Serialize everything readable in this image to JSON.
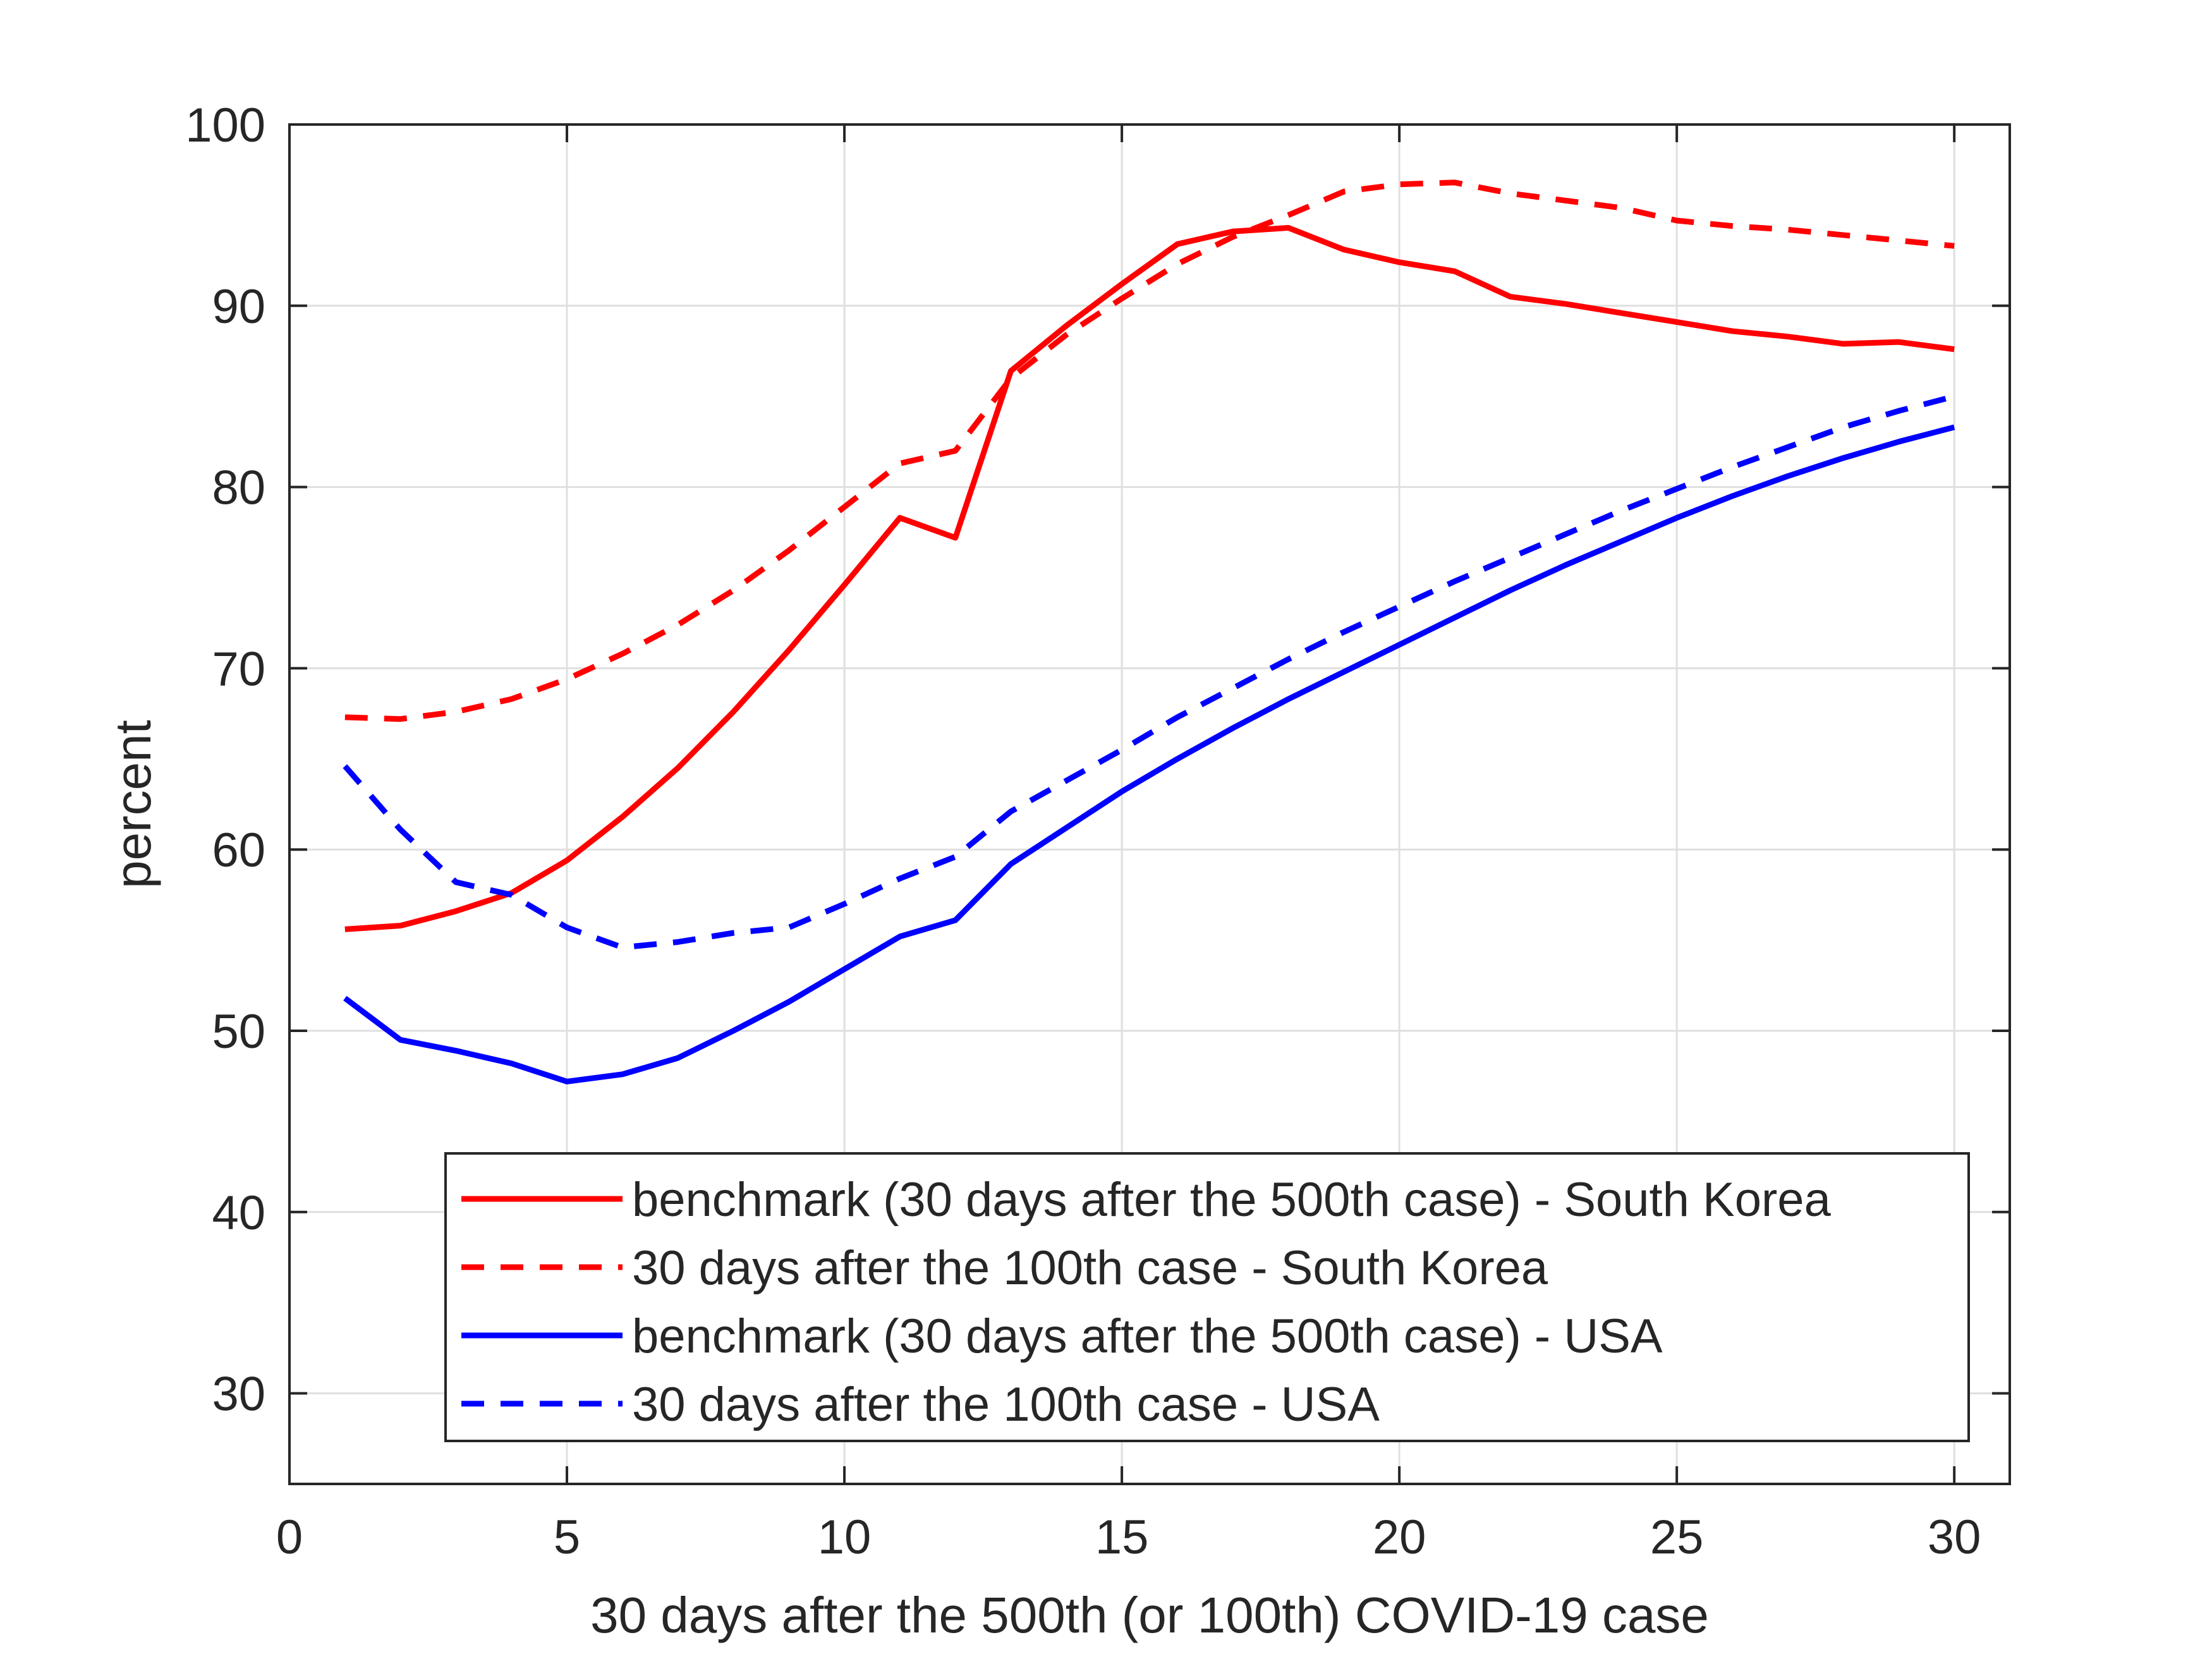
{
  "chart_data": {
    "type": "line",
    "title": "",
    "xlabel": "30 days after the 500th (or 100th) COVID-19 case",
    "ylabel": "percent",
    "xlim": [
      0,
      31
    ],
    "ylim": [
      25,
      100
    ],
    "xticks": [
      0,
      5,
      10,
      15,
      20,
      25,
      30
    ],
    "yticks": [
      30,
      40,
      50,
      60,
      70,
      80,
      90,
      100
    ],
    "grid": true,
    "legend_position": "bottom-right",
    "x": [
      1,
      2,
      3,
      4,
      5,
      6,
      7,
      8,
      9,
      10,
      11,
      12,
      13,
      14,
      15,
      16,
      17,
      18,
      19,
      20,
      21,
      22,
      23,
      24,
      25,
      26,
      27,
      28,
      29,
      30
    ],
    "series": [
      {
        "name": "benchmark (30 days after the 500th case) - South Korea",
        "color": "#ff0000",
        "dash": "solid",
        "values": [
          55.6,
          55.8,
          56.6,
          57.6,
          59.4,
          61.8,
          64.5,
          67.6,
          71.0,
          74.6,
          78.3,
          77.2,
          86.4,
          88.9,
          91.2,
          93.4,
          94.1,
          94.3,
          93.1,
          92.4,
          91.9,
          90.5,
          90.1,
          89.6,
          89.1,
          88.6,
          88.3,
          87.9,
          88.0,
          87.6
        ]
      },
      {
        "name": "30 days after the 100th case - South Korea",
        "color": "#ff0000",
        "dash": "dashed",
        "values": [
          67.3,
          67.2,
          67.6,
          68.3,
          69.4,
          70.8,
          72.4,
          74.3,
          76.5,
          78.9,
          81.3,
          82.0,
          86.0,
          88.4,
          90.4,
          92.3,
          93.8,
          95.0,
          96.3,
          96.7,
          96.8,
          96.2,
          95.8,
          95.4,
          94.7,
          94.4,
          94.2,
          93.9,
          93.6,
          93.3
        ]
      },
      {
        "name": "benchmark (30 days after the 500th case) - USA",
        "color": "#0000ff",
        "dash": "solid",
        "values": [
          51.8,
          49.5,
          48.9,
          48.2,
          47.2,
          47.6,
          48.5,
          50.0,
          51.6,
          53.4,
          55.2,
          56.1,
          59.2,
          61.2,
          63.2,
          65.0,
          66.7,
          68.3,
          69.8,
          71.3,
          72.8,
          74.3,
          75.7,
          77.0,
          78.3,
          79.5,
          80.6,
          81.6,
          82.5,
          83.3
        ]
      },
      {
        "name": "30 days after the 100th case - USA",
        "color": "#0000ff",
        "dash": "dashed",
        "values": [
          64.6,
          61.1,
          58.2,
          57.5,
          55.7,
          54.6,
          54.9,
          55.4,
          55.7,
          57.0,
          58.4,
          59.6,
          62.1,
          63.8,
          65.5,
          67.3,
          68.9,
          70.5,
          72.0,
          73.4,
          74.8,
          76.1,
          77.4,
          78.7,
          79.9,
          81.1,
          82.2,
          83.3,
          84.2,
          85.0
        ]
      }
    ]
  }
}
